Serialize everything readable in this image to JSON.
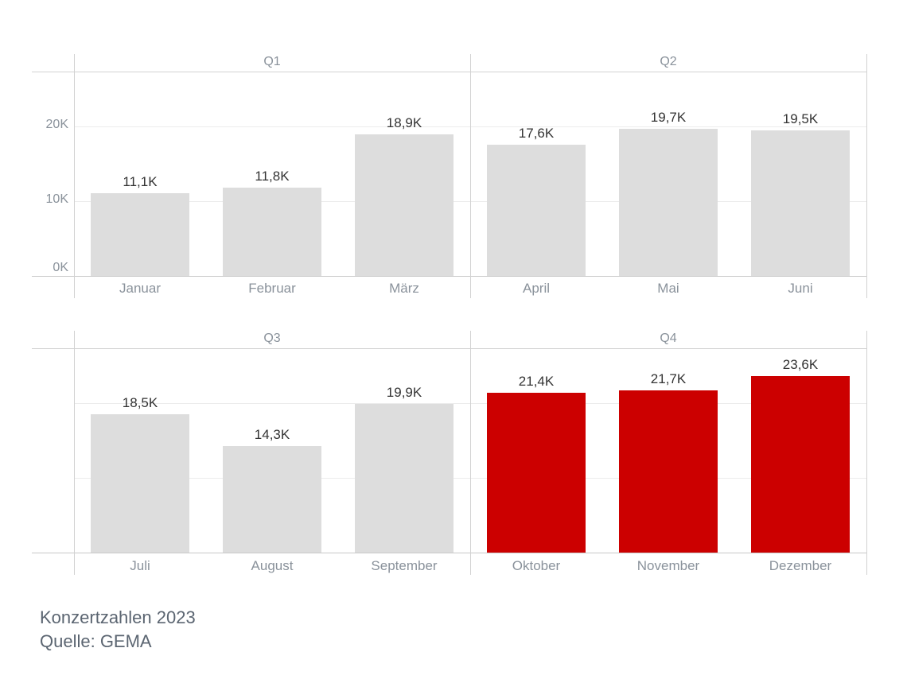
{
  "chart_data": {
    "type": "bar",
    "title": "Konzertzahlen 2023",
    "source": "Quelle: GEMA",
    "unit": "K",
    "grid": true,
    "y_axis": {
      "tick_labels": [
        "0K",
        "10K",
        "20K"
      ],
      "tick_values": [
        0,
        10,
        20
      ],
      "range": [
        0,
        27.3
      ],
      "labels_shown_on_top_row_only": true
    },
    "panels": [
      {
        "title": "Q1",
        "highlight": false,
        "categories": [
          "Januar",
          "Februar",
          "März"
        ],
        "values": [
          11.1,
          11.8,
          18.9
        ],
        "value_labels": [
          "11,1K",
          "11,8K",
          "18,9K"
        ]
      },
      {
        "title": "Q2",
        "highlight": false,
        "categories": [
          "April",
          "Mai",
          "Juni"
        ],
        "values": [
          17.6,
          19.7,
          19.5
        ],
        "value_labels": [
          "17,6K",
          "19,7K",
          "19,5K"
        ]
      },
      {
        "title": "Q3",
        "highlight": false,
        "categories": [
          "Juli",
          "August",
          "September"
        ],
        "values": [
          18.5,
          14.3,
          19.9
        ],
        "value_labels": [
          "18,5K",
          "14,3K",
          "19,9K"
        ]
      },
      {
        "title": "Q4",
        "highlight": true,
        "categories": [
          "Oktober",
          "November",
          "Dezember"
        ],
        "values": [
          21.4,
          21.7,
          23.6
        ],
        "value_labels": [
          "21,4K",
          "21,7K",
          "23,6K"
        ]
      }
    ],
    "colors": {
      "bar_default": "#dddddd",
      "bar_highlight": "#cc0000",
      "value_label": "#333333",
      "axis_label": "#8a929b",
      "panel_title": "#8a929b",
      "grid_line": "#ececec",
      "frame_line": "#d2d2d2",
      "axis_line": "#c8c8c8",
      "footer_text": "#5b6571",
      "background": "#ffffff"
    }
  }
}
